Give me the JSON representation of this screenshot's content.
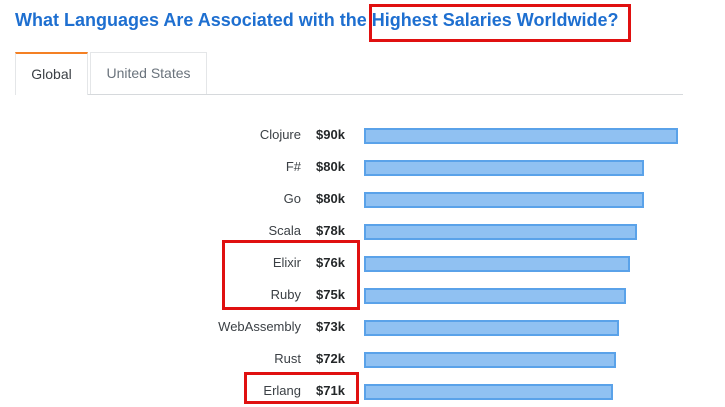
{
  "title": "What Languages Are Associated with the Highest Salaries Worldwide?",
  "tabs": [
    {
      "label": "Global",
      "active": true
    },
    {
      "label": "United States",
      "active": false
    }
  ],
  "colors": {
    "title": "#1e6fd0",
    "active_tab_accent": "#f48024",
    "bar_fill": "#90c1f2",
    "bar_border": "#5aa2e9",
    "annotation_box": "#e01010"
  },
  "chart_data": {
    "type": "bar",
    "orientation": "horizontal",
    "categories": [
      "Clojure",
      "F#",
      "Go",
      "Scala",
      "Elixir",
      "Ruby",
      "WebAssembly",
      "Rust",
      "Erlang"
    ],
    "values": [
      90,
      80,
      80,
      78,
      76,
      75,
      73,
      72,
      71
    ],
    "value_labels": [
      "$90k",
      "$80k",
      "$80k",
      "$78k",
      "$76k",
      "$75k",
      "$73k",
      "$72k",
      "$71k"
    ],
    "title": "",
    "xlabel": "",
    "ylabel": "",
    "xlim": [
      0,
      90
    ],
    "grid": false,
    "legend": "none"
  }
}
